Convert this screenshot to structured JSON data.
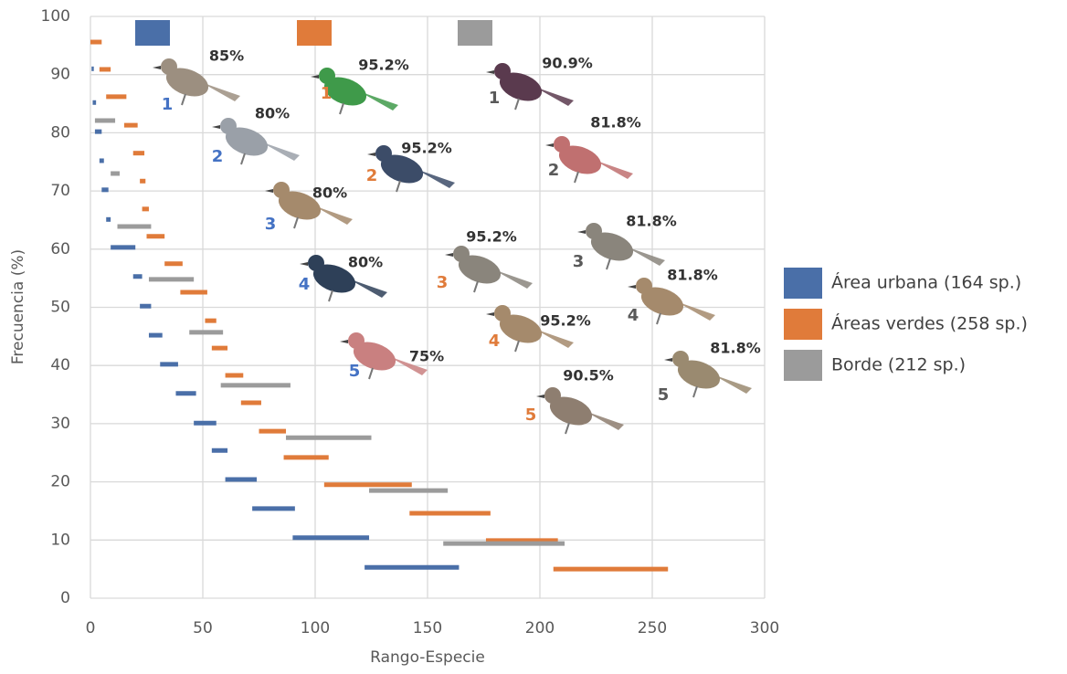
{
  "chart_data": {
    "type": "segments",
    "xlabel": "Rango-Especie",
    "ylabel": "Frecuencia (%)",
    "xlim": [
      0,
      300
    ],
    "xticks": [
      0,
      50,
      100,
      150,
      200,
      250,
      300
    ],
    "ylim": [
      0,
      100
    ],
    "yticks": [
      0,
      10,
      20,
      30,
      40,
      50,
      60,
      70,
      80,
      90,
      100
    ],
    "grid": true,
    "legend": "right",
    "series": [
      {
        "name": "Área urbana (164 sp.)",
        "color": "#4a6fa8",
        "values": [
          91,
          85.2,
          80.2,
          75.2,
          70.2,
          65.1,
          60.3,
          55.3,
          50.2,
          45.2,
          40.2,
          35.2,
          30.1,
          25.4,
          20.4,
          15.4,
          10.4,
          5.3
        ],
        "x_start": [
          0.5,
          1,
          2,
          4,
          5,
          7,
          9,
          19,
          22,
          26,
          31,
          38,
          46,
          54,
          60,
          72,
          90,
          122
        ],
        "x_end": [
          1.5,
          2.5,
          5,
          6,
          8,
          9,
          20,
          23,
          27,
          32,
          39,
          47,
          56,
          61,
          74,
          91,
          124,
          164
        ]
      },
      {
        "name": "Áreas verdes (258 sp.)",
        "color": "#e07b3a",
        "values": [
          95.6,
          90.9,
          86.2,
          81.3,
          76.5,
          71.7,
          66.9,
          62.2,
          57.5,
          52.6,
          47.7,
          43.0,
          38.3,
          33.6,
          28.7,
          24.2,
          19.5,
          14.6,
          9.9,
          5.0
        ],
        "x_start": [
          0,
          4,
          7,
          15,
          19,
          22,
          23,
          25,
          33,
          40,
          51,
          54,
          60,
          67,
          75,
          86,
          104,
          142,
          176,
          206
        ],
        "x_end": [
          5,
          9,
          16,
          21,
          24,
          24.5,
          26,
          33,
          41,
          52,
          56,
          61,
          68,
          76,
          87,
          106,
          143,
          178,
          208,
          257
        ]
      },
      {
        "name": "Borde (212 sp.)",
        "color": "#9b9b9b",
        "values": [
          82.1,
          73.0,
          63.9,
          54.8,
          45.7,
          36.6,
          27.6,
          18.5,
          9.4
        ],
        "x_start": [
          2,
          9,
          12,
          26,
          44,
          58,
          87,
          124,
          157
        ],
        "x_end": [
          11,
          13,
          27,
          46,
          59,
          89,
          125,
          159,
          211
        ]
      }
    ],
    "annotations": [
      {
        "ranks": [
          1,
          2,
          3,
          4,
          5
        ],
        "labels": [
          "85%",
          "80%",
          "80%",
          "80%",
          "75%"
        ]
      },
      {
        "ranks": [
          1,
          2,
          3,
          4,
          5
        ],
        "labels": [
          "95.2%",
          "95.2%",
          "95.2%",
          "95.2%",
          "90.5%"
        ]
      },
      {
        "ranks": [
          1,
          2,
          3,
          4,
          5
        ],
        "labels": [
          "90.9%",
          "81.8%",
          "81.8%",
          "81.8%",
          "81.8%"
        ]
      }
    ]
  }
}
